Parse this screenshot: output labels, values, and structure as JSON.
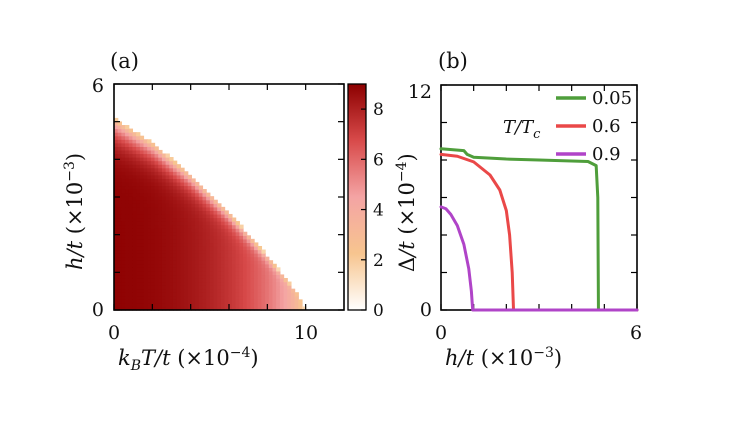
{
  "chart_data": [
    {
      "panel": "(a)",
      "type": "heatmap",
      "xlabel": "k_B T/t (×10^{-4})",
      "ylabel": "h/t (×10^{-3})",
      "x_ticks": [
        "0",
        "10"
      ],
      "y_ticks": [
        "0",
        "6"
      ],
      "xlim": [
        0,
        12
      ],
      "ylim": [
        0,
        6
      ],
      "colorbar": {
        "range": [
          0,
          9
        ],
        "ticks": [
          "0",
          "2",
          "4",
          "6",
          "8"
        ]
      },
      "critical_boundary": {
        "T": [
          0,
          2,
          4,
          6,
          8,
          9.5,
          10
        ],
        "h": [
          5.1,
          4.45,
          3.6,
          2.6,
          1.45,
          0.5,
          0
        ]
      },
      "gap_T0_h0": 8.5,
      "grid": {
        "nT": 52,
        "nH": 54
      },
      "colors": {
        "white": "#ffffff",
        "peach": "#f7c58f",
        "pink": "#f4a4a4",
        "red": "#d84a4a",
        "dark": "#8c0000"
      }
    },
    {
      "panel": "(b)",
      "type": "line",
      "xlabel": "h/t (×10^{-3})",
      "ylabel": "Δ/t (×10^{-4})",
      "x_ticks": [
        "0",
        "6"
      ],
      "y_ticks": [
        "0",
        "12"
      ],
      "xlim": [
        0,
        6
      ],
      "ylim": [
        0,
        12
      ],
      "legend_title": "T/T_c",
      "series": [
        {
          "name": "0.05",
          "color": "#4f9e3b",
          "x": [
            0,
            0.7,
            0.8,
            1.0,
            2.0,
            3.0,
            4.0,
            4.5,
            4.75,
            4.8,
            4.82,
            6.0
          ],
          "y": [
            8.6,
            8.5,
            8.3,
            8.15,
            8.05,
            8.0,
            7.95,
            7.92,
            7.7,
            6.0,
            0,
            0
          ]
        },
        {
          "name": "0.6",
          "color": "#ea4848",
          "x": [
            0,
            0.5,
            1.0,
            1.5,
            1.8,
            2.0,
            2.1,
            2.18,
            2.22,
            6.0
          ],
          "y": [
            8.3,
            8.2,
            7.9,
            7.2,
            6.4,
            5.3,
            4.0,
            2.0,
            0,
            0
          ]
        },
        {
          "name": "0.9",
          "color": "#b044c8",
          "x": [
            0,
            0.15,
            0.3,
            0.5,
            0.7,
            0.85,
            0.93,
            0.97,
            6.0
          ],
          "y": [
            5.5,
            5.4,
            5.1,
            4.5,
            3.5,
            2.2,
            1.0,
            0,
            0
          ]
        }
      ]
    }
  ]
}
